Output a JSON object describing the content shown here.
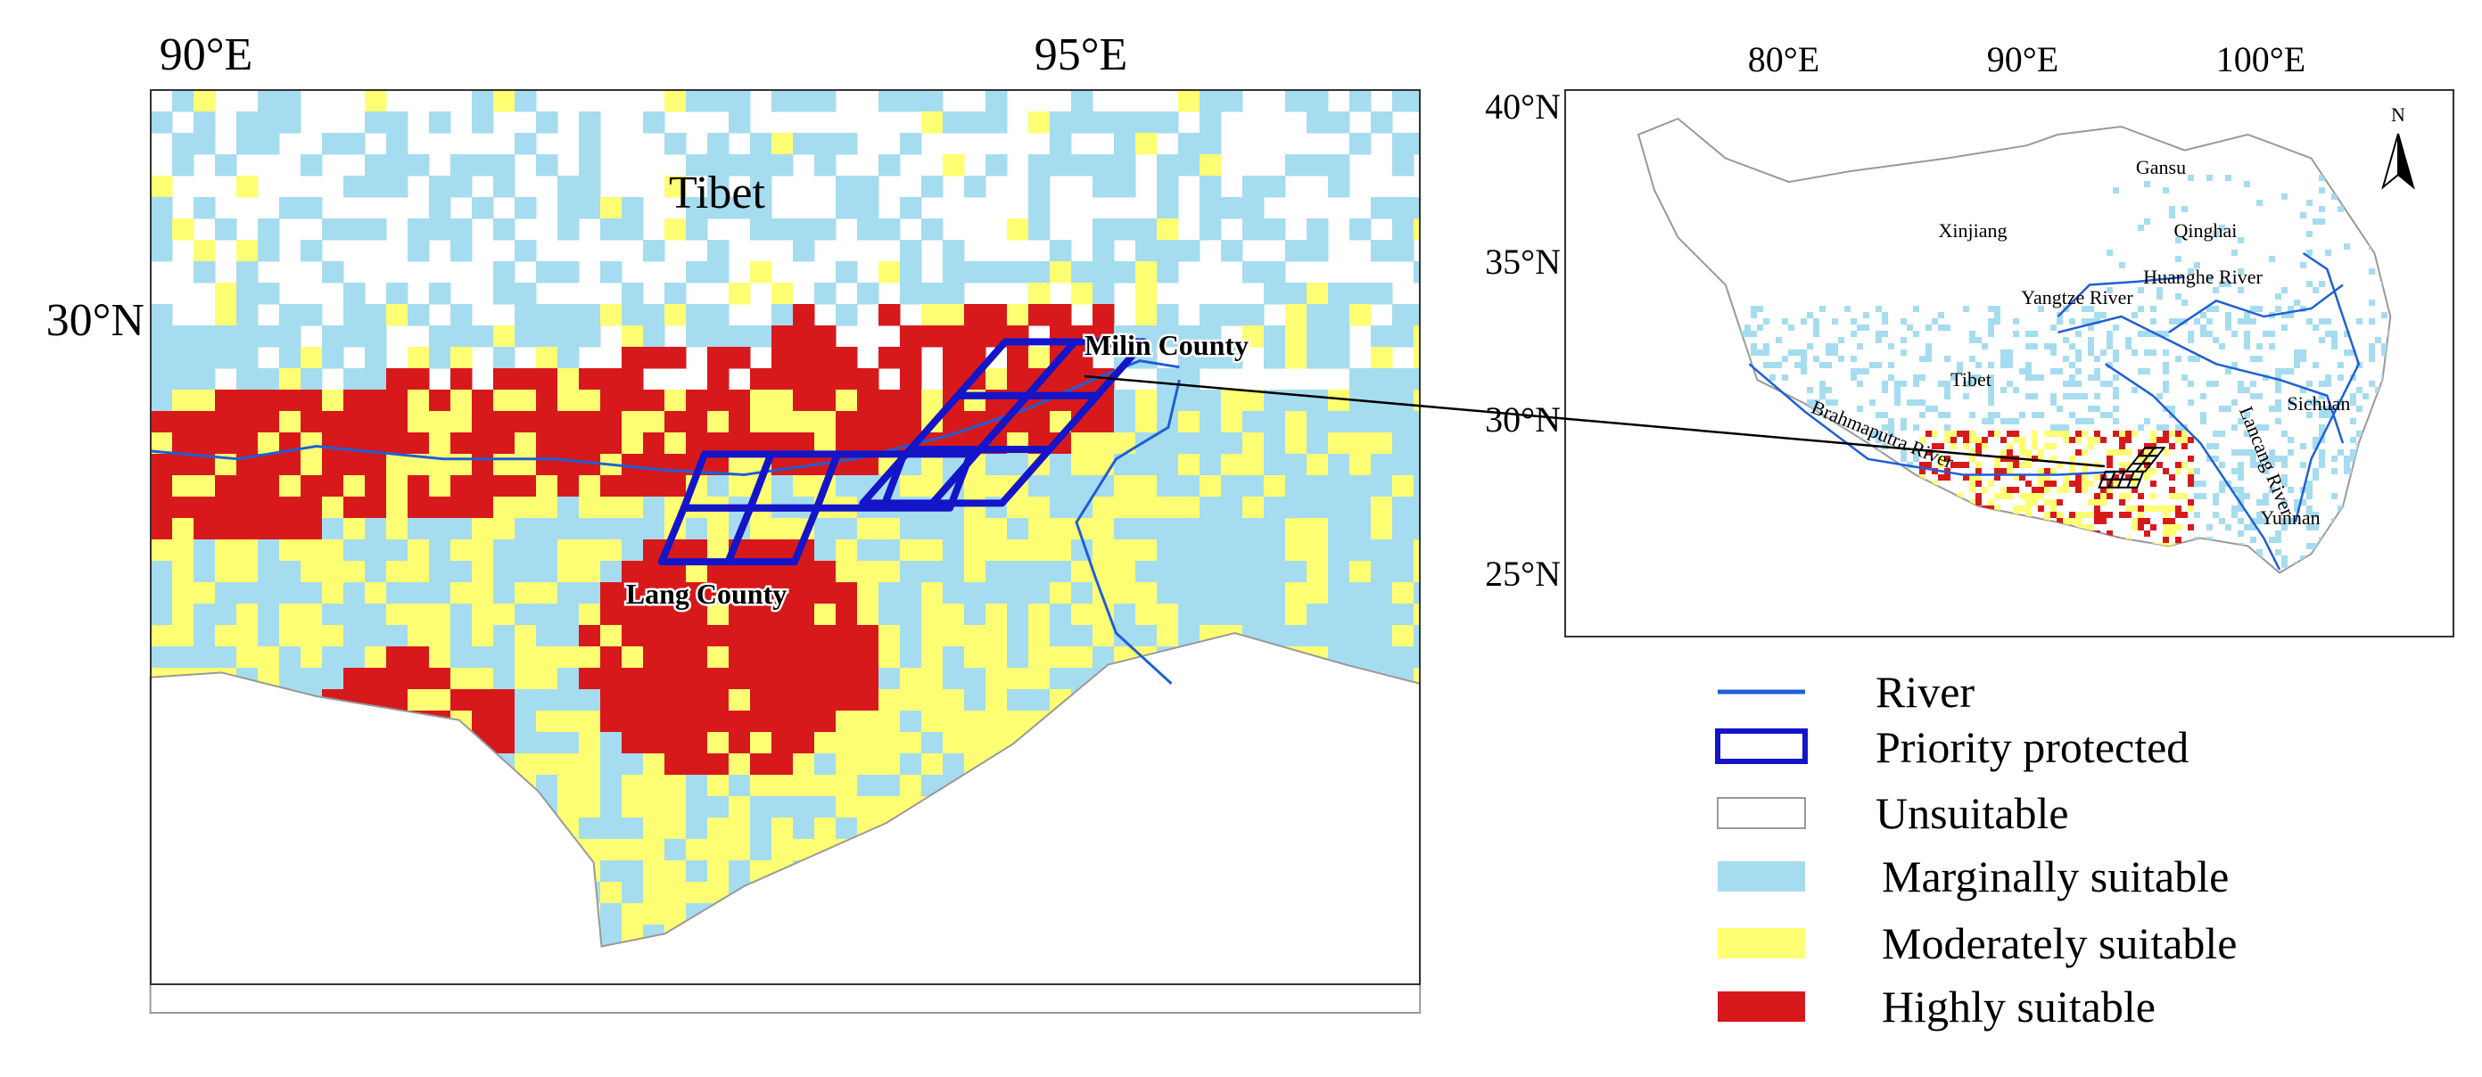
{
  "main_map": {
    "lon_labels": [
      "90°E",
      "95°E"
    ],
    "lat_labels": [
      "30°N"
    ],
    "place_labels": [
      "Tibet",
      "Milin County",
      "Lang County"
    ]
  },
  "inset_map": {
    "lon_labels": [
      "80°E",
      "90°E",
      "100°E"
    ],
    "lat_labels": [
      "40°N",
      "35°N",
      "30°N",
      "25°N"
    ],
    "place_labels": [
      "Gansu",
      "Xinjiang",
      "Qinghai",
      "Yangtze River",
      "Huanghe River",
      "Tibet",
      "Sichuan",
      "Brahmaputra River",
      "Lancang River",
      "Yunnan"
    ],
    "north_arrow": "N"
  },
  "legend": {
    "items": [
      "River",
      "Priority protected",
      "Unsuitable",
      "Marginally suitable",
      "Moderately suitable",
      "Highly suitable"
    ]
  }
}
